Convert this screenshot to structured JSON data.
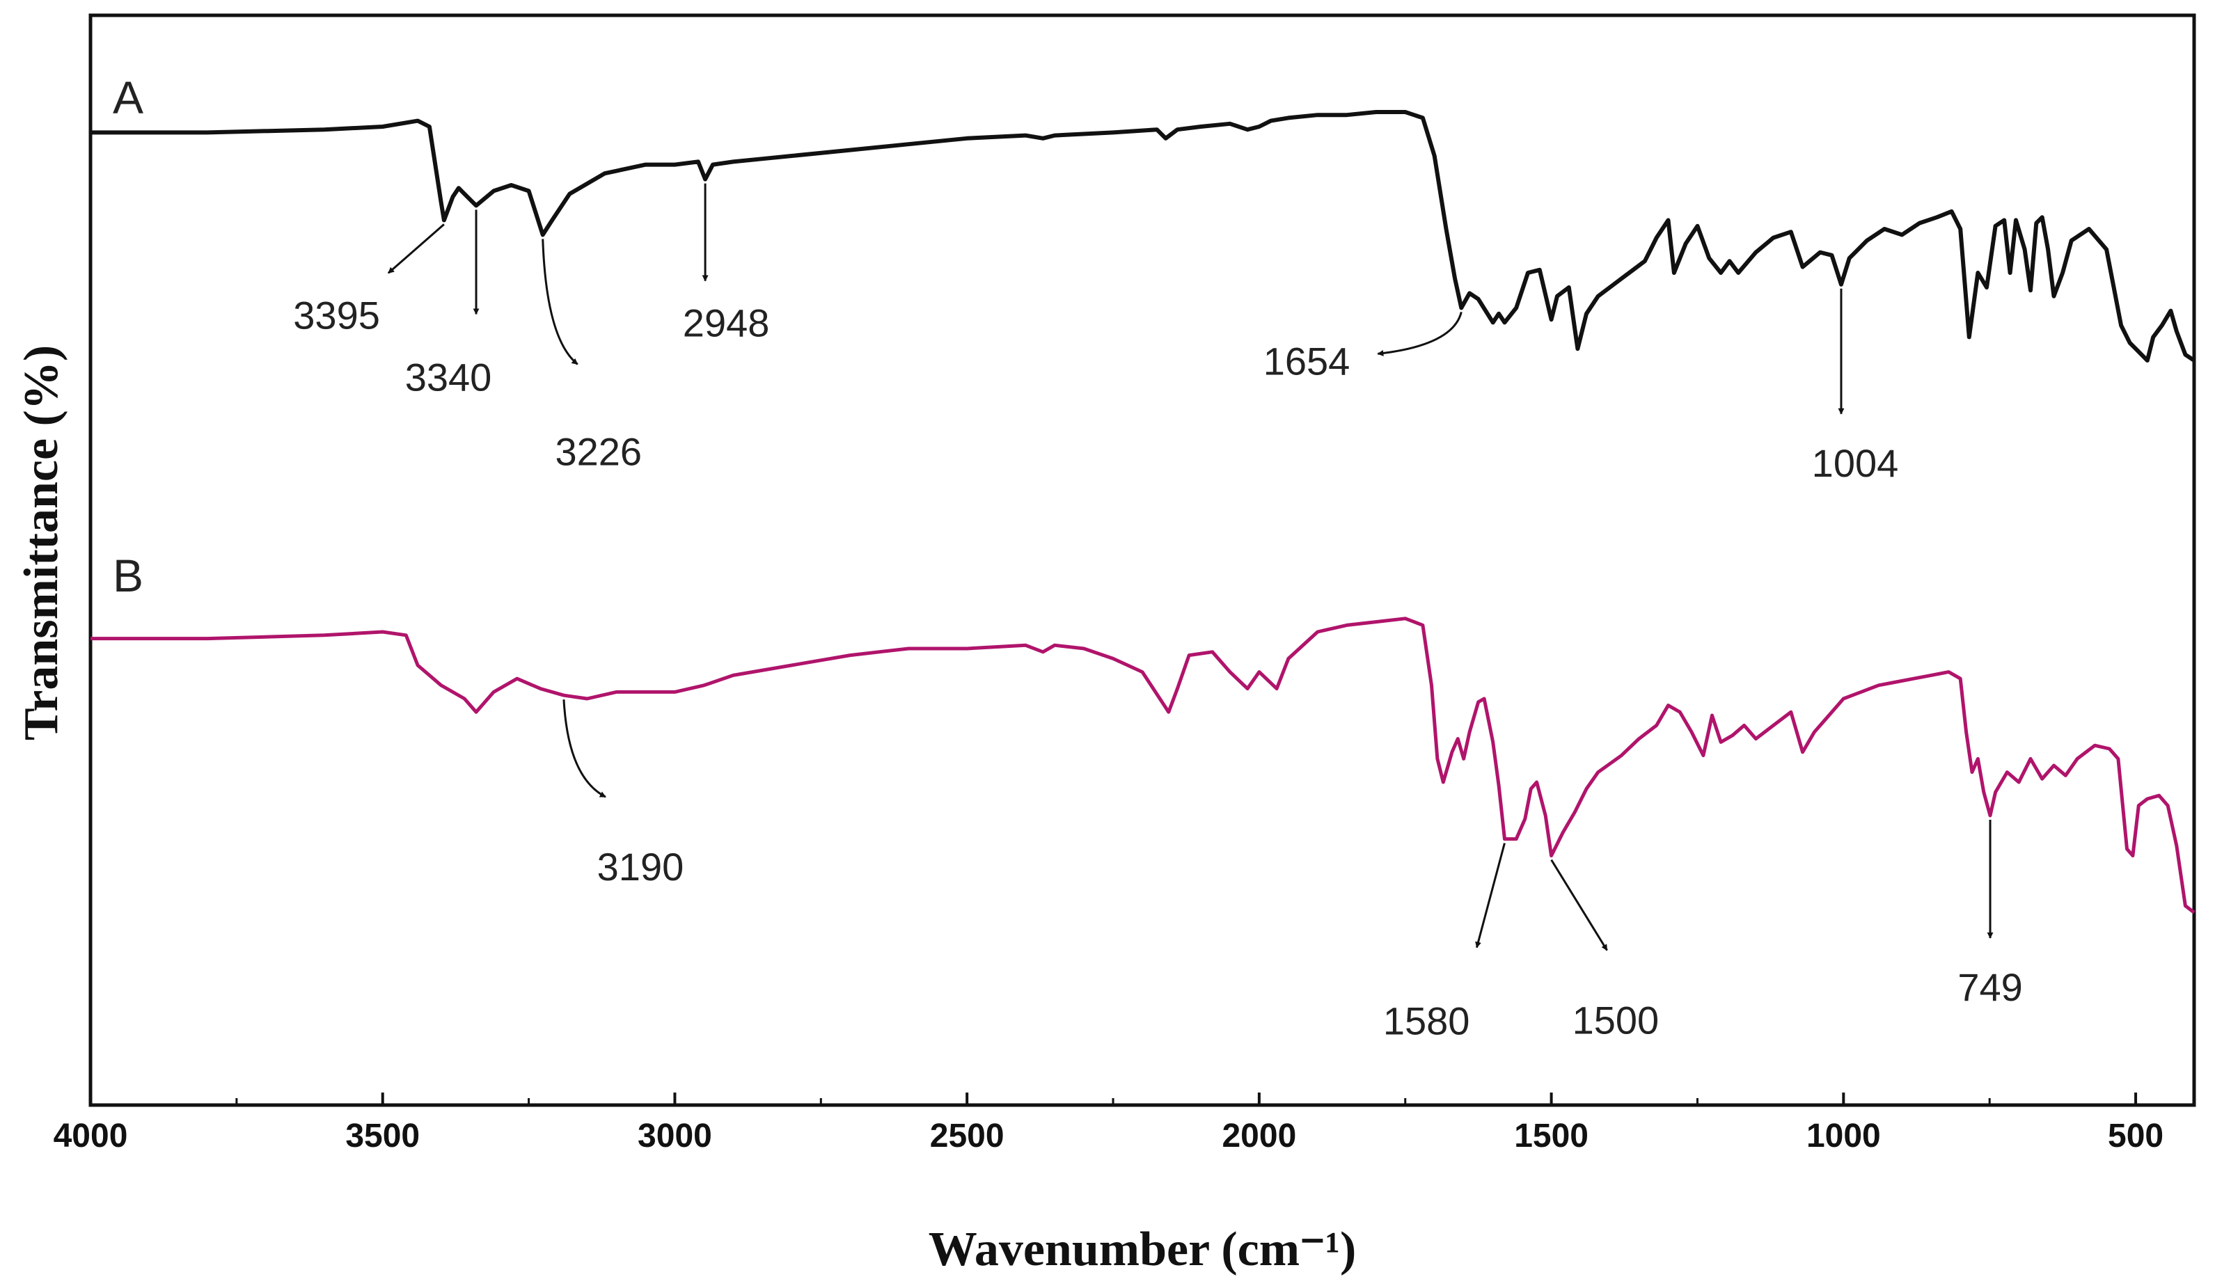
{
  "chart_data": {
    "type": "line",
    "xlabel": "Wavenumber (cm⁻¹)",
    "ylabel": "Transmittance (%)",
    "xlim": [
      4000,
      400
    ],
    "x_reversed": true,
    "x_ticks": [
      4000,
      3500,
      3000,
      2500,
      2000,
      1500,
      1000,
      500
    ],
    "y_ticks": [],
    "grid": false,
    "series": [
      {
        "name": "A",
        "color": "#111111",
        "points": [
          [
            4000,
            0.88
          ],
          [
            3800,
            0.88
          ],
          [
            3600,
            0.89
          ],
          [
            3500,
            0.9
          ],
          [
            3440,
            0.92
          ],
          [
            3420,
            0.9
          ],
          [
            3400,
            0.64
          ],
          [
            3395,
            0.58
          ],
          [
            3380,
            0.66
          ],
          [
            3370,
            0.69
          ],
          [
            3360,
            0.67
          ],
          [
            3340,
            0.63
          ],
          [
            3310,
            0.68
          ],
          [
            3280,
            0.7
          ],
          [
            3250,
            0.68
          ],
          [
            3226,
            0.53
          ],
          [
            3210,
            0.58
          ],
          [
            3180,
            0.67
          ],
          [
            3120,
            0.74
          ],
          [
            3050,
            0.77
          ],
          [
            3000,
            0.77
          ],
          [
            2960,
            0.78
          ],
          [
            2948,
            0.72
          ],
          [
            2935,
            0.77
          ],
          [
            2900,
            0.78
          ],
          [
            2850,
            0.79
          ],
          [
            2800,
            0.8
          ],
          [
            2700,
            0.82
          ],
          [
            2600,
            0.84
          ],
          [
            2500,
            0.86
          ],
          [
            2400,
            0.87
          ],
          [
            2370,
            0.86
          ],
          [
            2350,
            0.87
          ],
          [
            2250,
            0.88
          ],
          [
            2175,
            0.89
          ],
          [
            2160,
            0.86
          ],
          [
            2140,
            0.89
          ],
          [
            2100,
            0.9
          ],
          [
            2050,
            0.91
          ],
          [
            2020,
            0.89
          ],
          [
            2000,
            0.9
          ],
          [
            1980,
            0.92
          ],
          [
            1950,
            0.93
          ],
          [
            1900,
            0.94
          ],
          [
            1850,
            0.94
          ],
          [
            1800,
            0.95
          ],
          [
            1750,
            0.95
          ],
          [
            1720,
            0.93
          ],
          [
            1700,
            0.8
          ],
          [
            1680,
            0.55
          ],
          [
            1665,
            0.38
          ],
          [
            1654,
            0.28
          ],
          [
            1640,
            0.33
          ],
          [
            1625,
            0.31
          ],
          [
            1600,
            0.23
          ],
          [
            1590,
            0.26
          ],
          [
            1580,
            0.23
          ],
          [
            1560,
            0.28
          ],
          [
            1540,
            0.4
          ],
          [
            1520,
            0.41
          ],
          [
            1500,
            0.24
          ],
          [
            1490,
            0.32
          ],
          [
            1470,
            0.35
          ],
          [
            1455,
            0.14
          ],
          [
            1440,
            0.26
          ],
          [
            1420,
            0.32
          ],
          [
            1380,
            0.38
          ],
          [
            1360,
            0.41
          ],
          [
            1340,
            0.44
          ],
          [
            1320,
            0.52
          ],
          [
            1300,
            0.58
          ],
          [
            1290,
            0.4
          ],
          [
            1270,
            0.5
          ],
          [
            1250,
            0.56
          ],
          [
            1230,
            0.45
          ],
          [
            1210,
            0.4
          ],
          [
            1195,
            0.44
          ],
          [
            1180,
            0.4
          ],
          [
            1150,
            0.47
          ],
          [
            1120,
            0.52
          ],
          [
            1090,
            0.54
          ],
          [
            1070,
            0.42
          ],
          [
            1040,
            0.47
          ],
          [
            1020,
            0.46
          ],
          [
            1004,
            0.36
          ],
          [
            990,
            0.45
          ],
          [
            960,
            0.51
          ],
          [
            930,
            0.55
          ],
          [
            900,
            0.53
          ],
          [
            870,
            0.57
          ],
          [
            840,
            0.59
          ],
          [
            815,
            0.61
          ],
          [
            800,
            0.55
          ],
          [
            785,
            0.18
          ],
          [
            770,
            0.4
          ],
          [
            755,
            0.35
          ],
          [
            740,
            0.56
          ],
          [
            725,
            0.58
          ],
          [
            715,
            0.4
          ],
          [
            705,
            0.58
          ],
          [
            690,
            0.48
          ],
          [
            680,
            0.34
          ],
          [
            670,
            0.57
          ],
          [
            660,
            0.59
          ],
          [
            650,
            0.48
          ],
          [
            640,
            0.32
          ],
          [
            625,
            0.4
          ],
          [
            610,
            0.51
          ],
          [
            580,
            0.55
          ],
          [
            550,
            0.48
          ],
          [
            525,
            0.22
          ],
          [
            510,
            0.16
          ],
          [
            495,
            0.13
          ],
          [
            480,
            0.1
          ],
          [
            470,
            0.18
          ],
          [
            455,
            0.22
          ],
          [
            440,
            0.27
          ],
          [
            430,
            0.2
          ],
          [
            415,
            0.12
          ],
          [
            400,
            0.1
          ]
        ]
      },
      {
        "name": "B",
        "color": "#b0146b",
        "points": [
          [
            4000,
            0.88
          ],
          [
            3800,
            0.88
          ],
          [
            3600,
            0.89
          ],
          [
            3500,
            0.9
          ],
          [
            3460,
            0.89
          ],
          [
            3440,
            0.8
          ],
          [
            3400,
            0.74
          ],
          [
            3360,
            0.7
          ],
          [
            3340,
            0.66
          ],
          [
            3310,
            0.72
          ],
          [
            3270,
            0.76
          ],
          [
            3230,
            0.73
          ],
          [
            3190,
            0.71
          ],
          [
            3150,
            0.7
          ],
          [
            3100,
            0.72
          ],
          [
            3000,
            0.72
          ],
          [
            2950,
            0.74
          ],
          [
            2900,
            0.77
          ],
          [
            2800,
            0.8
          ],
          [
            2700,
            0.83
          ],
          [
            2600,
            0.85
          ],
          [
            2500,
            0.85
          ],
          [
            2400,
            0.86
          ],
          [
            2370,
            0.84
          ],
          [
            2350,
            0.86
          ],
          [
            2300,
            0.85
          ],
          [
            2250,
            0.82
          ],
          [
            2200,
            0.78
          ],
          [
            2170,
            0.7
          ],
          [
            2155,
            0.66
          ],
          [
            2140,
            0.73
          ],
          [
            2120,
            0.83
          ],
          [
            2080,
            0.84
          ],
          [
            2050,
            0.78
          ],
          [
            2020,
            0.73
          ],
          [
            2000,
            0.78
          ],
          [
            1970,
            0.73
          ],
          [
            1950,
            0.82
          ],
          [
            1900,
            0.9
          ],
          [
            1850,
            0.92
          ],
          [
            1800,
            0.93
          ],
          [
            1750,
            0.94
          ],
          [
            1720,
            0.92
          ],
          [
            1705,
            0.74
          ],
          [
            1695,
            0.52
          ],
          [
            1685,
            0.45
          ],
          [
            1670,
            0.54
          ],
          [
            1660,
            0.58
          ],
          [
            1650,
            0.52
          ],
          [
            1640,
            0.6
          ],
          [
            1625,
            0.69
          ],
          [
            1615,
            0.7
          ],
          [
            1600,
            0.57
          ],
          [
            1590,
            0.44
          ],
          [
            1580,
            0.28
          ],
          [
            1560,
            0.28
          ],
          [
            1545,
            0.34
          ],
          [
            1535,
            0.43
          ],
          [
            1525,
            0.45
          ],
          [
            1510,
            0.35
          ],
          [
            1500,
            0.23
          ],
          [
            1480,
            0.3
          ],
          [
            1460,
            0.36
          ],
          [
            1440,
            0.43
          ],
          [
            1420,
            0.48
          ],
          [
            1380,
            0.53
          ],
          [
            1350,
            0.58
          ],
          [
            1320,
            0.62
          ],
          [
            1300,
            0.68
          ],
          [
            1280,
            0.66
          ],
          [
            1260,
            0.6
          ],
          [
            1240,
            0.53
          ],
          [
            1225,
            0.65
          ],
          [
            1210,
            0.57
          ],
          [
            1190,
            0.59
          ],
          [
            1170,
            0.62
          ],
          [
            1150,
            0.58
          ],
          [
            1120,
            0.62
          ],
          [
            1090,
            0.66
          ],
          [
            1070,
            0.54
          ],
          [
            1050,
            0.6
          ],
          [
            1030,
            0.64
          ],
          [
            1000,
            0.7
          ],
          [
            970,
            0.72
          ],
          [
            940,
            0.74
          ],
          [
            910,
            0.75
          ],
          [
            880,
            0.76
          ],
          [
            850,
            0.77
          ],
          [
            820,
            0.78
          ],
          [
            800,
            0.76
          ],
          [
            790,
            0.6
          ],
          [
            780,
            0.48
          ],
          [
            770,
            0.52
          ],
          [
            760,
            0.42
          ],
          [
            749,
            0.35
          ],
          [
            740,
            0.42
          ],
          [
            720,
            0.48
          ],
          [
            700,
            0.45
          ],
          [
            680,
            0.52
          ],
          [
            660,
            0.46
          ],
          [
            640,
            0.5
          ],
          [
            620,
            0.47
          ],
          [
            600,
            0.52
          ],
          [
            570,
            0.56
          ],
          [
            545,
            0.55
          ],
          [
            530,
            0.52
          ],
          [
            515,
            0.25
          ],
          [
            505,
            0.23
          ],
          [
            495,
            0.38
          ],
          [
            480,
            0.4
          ],
          [
            460,
            0.41
          ],
          [
            445,
            0.38
          ],
          [
            430,
            0.26
          ],
          [
            415,
            0.08
          ],
          [
            400,
            0.06
          ]
        ]
      }
    ],
    "panel_labels": [
      "A",
      "B"
    ],
    "annotations": [
      {
        "label": "3395",
        "series": "A",
        "x": 3395
      },
      {
        "label": "3340",
        "series": "A",
        "x": 3340
      },
      {
        "label": "3226",
        "series": "A",
        "x": 3226
      },
      {
        "label": "2948",
        "series": "A",
        "x": 2948
      },
      {
        "label": "1654",
        "series": "A",
        "x": 1654
      },
      {
        "label": "1004",
        "series": "A",
        "x": 1004
      },
      {
        "label": "3190",
        "series": "B",
        "x": 3190
      },
      {
        "label": "1580",
        "series": "B",
        "x": 1580
      },
      {
        "label": "1500",
        "series": "B",
        "x": 1500
      },
      {
        "label": "749",
        "series": "B",
        "x": 749
      }
    ]
  }
}
